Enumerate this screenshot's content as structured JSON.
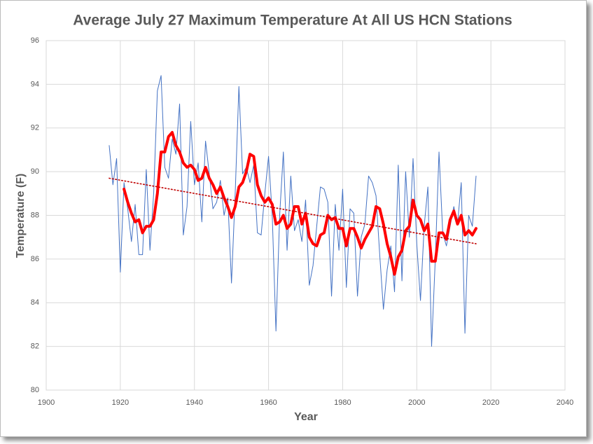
{
  "chart_data": {
    "type": "line",
    "title": "Average July 27 Maximum Temperature At All US HCN Stations",
    "x_label": "Year",
    "y_label": "Temperature (F)",
    "xlim": [
      1900,
      2040
    ],
    "xticks": [
      1900,
      1920,
      1940,
      1960,
      1980,
      2000,
      2020,
      2040
    ],
    "ylim": [
      80,
      96
    ],
    "yticks": [
      80,
      82,
      84,
      86,
      88,
      90,
      92,
      94,
      96
    ],
    "grid": true,
    "x": [
      1917,
      1918,
      1919,
      1920,
      1921,
      1922,
      1923,
      1924,
      1925,
      1926,
      1927,
      1928,
      1929,
      1930,
      1931,
      1932,
      1933,
      1934,
      1935,
      1936,
      1937,
      1938,
      1939,
      1940,
      1941,
      1942,
      1943,
      1944,
      1945,
      1946,
      1947,
      1948,
      1949,
      1950,
      1951,
      1952,
      1953,
      1954,
      1955,
      1956,
      1957,
      1958,
      1959,
      1960,
      1961,
      1962,
      1963,
      1964,
      1965,
      1966,
      1967,
      1968,
      1969,
      1970,
      1971,
      1972,
      1973,
      1974,
      1975,
      1976,
      1977,
      1978,
      1979,
      1980,
      1981,
      1982,
      1983,
      1984,
      1985,
      1986,
      1987,
      1988,
      1989,
      1990,
      1991,
      1992,
      1993,
      1994,
      1995,
      1996,
      1997,
      1998,
      1999,
      2000,
      2001,
      2002,
      2003,
      2004,
      2005,
      2006,
      2007,
      2008,
      2009,
      2010,
      2011,
      2012,
      2013,
      2014,
      2015,
      2016
    ],
    "series": [
      {
        "color": "#4472c4",
        "width": 1,
        "values": [
          91.2,
          89.4,
          90.6,
          85.4,
          89.5,
          88.3,
          86.8,
          88.5,
          86.2,
          86.2,
          90.1,
          86.4,
          89.0,
          93.7,
          94.4,
          90.2,
          89.7,
          91.5,
          90.8,
          93.1,
          87.1,
          88.4,
          92.3,
          89.4,
          90.4,
          87.7,
          91.4,
          89.9,
          88.3,
          88.6,
          89.6,
          88.0,
          88.8,
          84.9,
          89.0,
          93.9,
          89.9,
          90.2,
          89.5,
          90.3,
          87.2,
          87.1,
          89.0,
          90.7,
          88.0,
          82.7,
          88.0,
          90.9,
          86.4,
          89.8,
          87.3,
          87.8,
          86.8,
          88.7,
          84.8,
          85.7,
          87.5,
          89.3,
          89.2,
          88.6,
          84.3,
          88.5,
          86.4,
          89.2,
          84.7,
          88.3,
          88.1,
          84.3,
          87.0,
          87.6,
          89.8,
          89.5,
          88.9,
          86.2,
          83.7,
          85.5,
          86.6,
          84.5,
          90.3,
          85.0,
          90.0,
          87.0,
          90.6,
          86.7,
          84.1,
          87.5,
          89.3,
          82.0,
          86.0,
          90.9,
          87.2,
          86.6,
          87.5,
          88.4,
          87.6,
          89.5,
          82.6,
          88.0,
          87.5,
          89.8
        ]
      },
      {
        "color": "#ff0000",
        "width": 4,
        "values": [
          null,
          null,
          null,
          null,
          89.2,
          88.6,
          88.1,
          87.7,
          87.8,
          87.2,
          87.5,
          87.5,
          87.8,
          89.0,
          90.9,
          90.9,
          91.6,
          91.8,
          91.2,
          90.9,
          90.4,
          90.2,
          90.3,
          90.1,
          89.6,
          89.7,
          90.2,
          89.7,
          89.4,
          89.0,
          89.3,
          88.8,
          88.4,
          87.9,
          88.4,
          89.3,
          89.5,
          90.0,
          90.8,
          90.7,
          89.4,
          88.9,
          88.6,
          88.8,
          88.5,
          87.6,
          87.7,
          88.0,
          87.4,
          87.6,
          88.4,
          88.4,
          87.6,
          88.1,
          87.0,
          86.7,
          86.6,
          87.1,
          87.2,
          88.0,
          87.8,
          87.9,
          87.4,
          87.4,
          86.6,
          87.4,
          87.4,
          87.0,
          86.5,
          86.9,
          87.2,
          87.5,
          88.4,
          88.3,
          87.6,
          86.7,
          86.1,
          85.3,
          86.1,
          86.4,
          87.3,
          87.5,
          88.7,
          88.0,
          87.8,
          87.3,
          87.6,
          85.9,
          85.9,
          87.2,
          87.2,
          86.9,
          87.8,
          88.2,
          87.6,
          88.0,
          87.1,
          87.3,
          87.1,
          87.4
        ]
      },
      {
        "color": "#c00000",
        "width": 1.6,
        "dash": true,
        "x": [
          1917,
          2016
        ],
        "values": [
          89.7,
          86.7
        ]
      }
    ]
  }
}
